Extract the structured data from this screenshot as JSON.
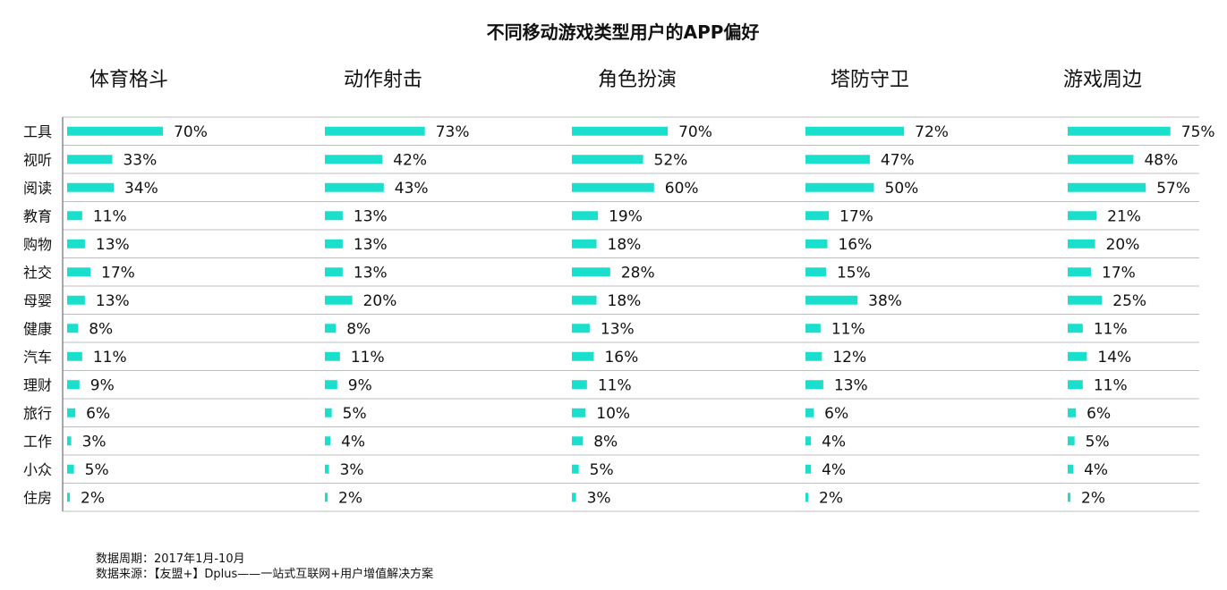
{
  "title": "不同移动游戏类型用户的APP偏好",
  "source": {
    "period": "数据周期：2017年1月-10月",
    "origin": "数据来源：【友盟+】Dplus——一站式互联网+用户增值解决方案"
  },
  "colors": {
    "bar": "#19DFCC",
    "grid": "#BFBFBF",
    "axis": "#8C8C8C"
  },
  "chart_data": {
    "type": "bar",
    "orientation": "horizontal",
    "categories": [
      "工具",
      "视听",
      "阅读",
      "教育",
      "购物",
      "社交",
      "母婴",
      "健康",
      "汽车",
      "理财",
      "旅行",
      "工作",
      "小众",
      "住房"
    ],
    "unit": "%",
    "xlim": [
      0,
      100
    ],
    "grid": true,
    "series": [
      {
        "name": "体育格斗",
        "values": [
          70,
          33,
          34,
          11,
          13,
          17,
          13,
          8,
          11,
          9,
          6,
          3,
          5,
          2
        ]
      },
      {
        "name": "动作射击",
        "values": [
          73,
          42,
          43,
          13,
          13,
          13,
          20,
          8,
          11,
          9,
          5,
          4,
          3,
          2
        ]
      },
      {
        "name": "角色扮演",
        "values": [
          70,
          52,
          60,
          19,
          18,
          28,
          18,
          13,
          16,
          11,
          10,
          8,
          5,
          3
        ]
      },
      {
        "name": "塔防守卫",
        "values": [
          72,
          47,
          50,
          17,
          16,
          15,
          38,
          11,
          12,
          13,
          6,
          4,
          4,
          2
        ]
      },
      {
        "name": "游戏周边",
        "values": [
          75,
          48,
          57,
          21,
          20,
          17,
          25,
          11,
          14,
          11,
          6,
          5,
          4,
          2
        ]
      }
    ]
  }
}
